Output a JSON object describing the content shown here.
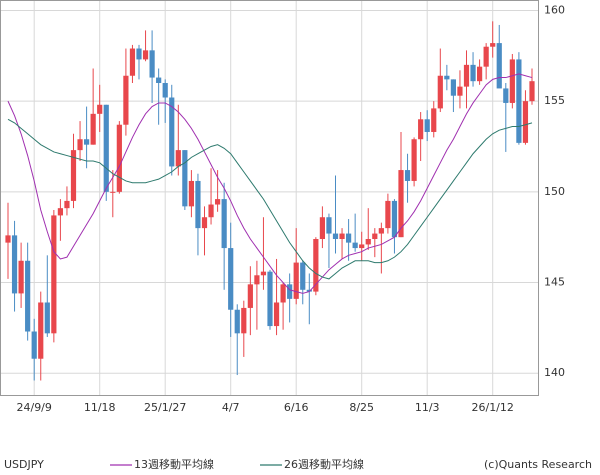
{
  "chart_data": {
    "type": "candlestick",
    "symbol": "USDJPY",
    "credit": "(c)Quants Research",
    "categories": [
      null,
      null,
      null,
      null,
      "24/9/9",
      null,
      null,
      null,
      null,
      null,
      null,
      null,
      null,
      null,
      "11/18",
      null,
      null,
      null,
      null,
      null,
      null,
      null,
      null,
      null,
      "25/1/27",
      null,
      null,
      null,
      null,
      null,
      null,
      null,
      null,
      null,
      "4/7",
      null,
      null,
      null,
      null,
      null,
      null,
      null,
      null,
      null,
      "6/16",
      null,
      null,
      null,
      null,
      null,
      null,
      null,
      null,
      null,
      "8/25",
      null,
      null,
      null,
      null,
      null,
      null,
      null,
      null,
      null,
      "11/3",
      null,
      null,
      null,
      null,
      null,
      null,
      null,
      null,
      null,
      "26/1/12",
      null,
      null,
      null,
      null,
      null,
      null
    ],
    "open": [
      147.2,
      147.6,
      144.4,
      146.2,
      142.3,
      140.8,
      143.9,
      142.2,
      148.7,
      149.1,
      149.5,
      152.3,
      152.9,
      152.6,
      154.3,
      154.8,
      150.0,
      150.0,
      153.7,
      156.4,
      157.9,
      157.3,
      157.8,
      156.3,
      156.0,
      155.2,
      151.4,
      152.3,
      149.2,
      150.6,
      148.0,
      148.6,
      149.3,
      149.6,
      146.9,
      143.5,
      142.2,
      143.6,
      144.9,
      145.4,
      145.6,
      142.6,
      143.9,
      144.9,
      144.1,
      146.1,
      144.6,
      144.5,
      147.4,
      148.6,
      147.7,
      147.4,
      147.7,
      147.2,
      146.9,
      147.1,
      147.4,
      147.7,
      148.0,
      149.5,
      147.5,
      151.2,
      150.6,
      152.9,
      154.0,
      153.3,
      154.6,
      156.4,
      156.2,
      155.3,
      155.8,
      157.0,
      156.1,
      156.9,
      158.0,
      158.2,
      155.7,
      154.9,
      157.3,
      152.7,
      155.0
    ],
    "high": [
      149.4,
      148.4,
      147.2,
      147.2,
      143.0,
      144.5,
      146.5,
      149.0,
      149.6,
      150.3,
      153.2,
      153.9,
      154.7,
      156.8,
      155.9,
      154.8,
      151.2,
      153.9,
      157.9,
      158.1,
      158.1,
      158.9,
      158.9,
      156.8,
      156.2,
      155.9,
      154.8,
      152.3,
      151.2,
      151.0,
      149.2,
      151.3,
      151.2,
      150.5,
      148.3,
      143.8,
      144.0,
      145.9,
      146.2,
      148.6,
      145.7,
      146.3,
      145.0,
      145.5,
      148.0,
      146.2,
      145.5,
      147.5,
      149.2,
      148.8,
      150.9,
      148.0,
      148.5,
      148.8,
      147.8,
      149.1,
      148.0,
      148.3,
      149.9,
      149.6,
      153.3,
      152.1,
      153.0,
      154.4,
      154.5,
      155.0,
      157.9,
      157.0,
      156.2,
      156.7,
      157.8,
      157.7,
      157.3,
      158.2,
      159.4,
      159.2,
      156.0,
      157.6,
      157.7,
      155.6,
      156.8
    ],
    "low": [
      145.2,
      143.4,
      143.6,
      141.8,
      139.6,
      139.6,
      142.0,
      141.7,
      147.3,
      148.7,
      149.1,
      151.7,
      151.3,
      152.6,
      153.3,
      149.5,
      148.6,
      149.9,
      153.1,
      156.0,
      156.2,
      157.2,
      154.9,
      153.7,
      153.8,
      150.9,
      150.9,
      149.0,
      148.6,
      146.5,
      146.5,
      148.2,
      148.9,
      144.6,
      142.0,
      139.9,
      140.9,
      142.1,
      142.4,
      144.6,
      142.4,
      142.1,
      142.4,
      142.8,
      143.8,
      143.8,
      142.7,
      144.3,
      146.9,
      145.8,
      146.6,
      146.3,
      146.2,
      146.7,
      146.2,
      146.8,
      146.4,
      145.5,
      147.7,
      146.6,
      147.5,
      149.4,
      150.3,
      151.7,
      152.8,
      153.0,
      154.4,
      155.6,
      154.4,
      154.6,
      154.6,
      155.8,
      155.9,
      156.2,
      157.4,
      155.8,
      152.2,
      154.6,
      152.6,
      152.6,
      154.8
    ],
    "close": [
      147.6,
      144.4,
      146.2,
      142.3,
      140.8,
      143.9,
      142.2,
      148.7,
      149.1,
      149.5,
      152.3,
      152.9,
      152.6,
      154.3,
      154.8,
      150.0,
      150.0,
      153.7,
      156.4,
      157.9,
      157.3,
      157.8,
      156.3,
      156.0,
      155.2,
      151.4,
      152.3,
      149.2,
      150.6,
      148.0,
      148.6,
      149.3,
      149.6,
      146.9,
      143.5,
      142.2,
      143.6,
      144.9,
      145.4,
      145.6,
      142.6,
      143.9,
      144.9,
      144.1,
      146.1,
      144.6,
      144.5,
      147.4,
      148.6,
      147.7,
      147.4,
      147.7,
      147.2,
      146.9,
      147.1,
      147.4,
      147.7,
      148.0,
      149.5,
      147.5,
      151.2,
      150.6,
      152.9,
      154.0,
      153.3,
      154.6,
      156.4,
      156.2,
      155.3,
      155.8,
      157.0,
      156.1,
      156.9,
      158.0,
      158.2,
      155.7,
      154.9,
      157.3,
      152.7,
      155.0,
      156.1
    ],
    "up_color": "#e8474c",
    "down_color": "#4a8cc4",
    "lines": [
      {
        "name": "13週移動平均線",
        "color": "#a030b0",
        "values": [
          155.0,
          154.2,
          153.2,
          152.0,
          150.6,
          149.0,
          147.8,
          146.7,
          146.3,
          146.4,
          147.0,
          147.6,
          148.2,
          148.8,
          149.5,
          150.2,
          150.8,
          151.4,
          152.2,
          153.0,
          153.7,
          154.3,
          154.7,
          154.9,
          154.9,
          154.7,
          154.4,
          154.0,
          153.5,
          152.9,
          152.2,
          151.5,
          150.8,
          150.2,
          149.5,
          148.7,
          148.0,
          147.4,
          146.9,
          146.4,
          145.9,
          145.4,
          145.0,
          144.6,
          144.5,
          144.4,
          144.5,
          144.9,
          145.3,
          145.7,
          146.0,
          146.3,
          146.5,
          146.6,
          146.7,
          146.9,
          147.0,
          147.1,
          147.3,
          147.5,
          148.0,
          148.4,
          148.9,
          149.5,
          150.2,
          150.9,
          151.6,
          152.3,
          152.9,
          153.6,
          154.3,
          154.9,
          155.4,
          155.9,
          156.2,
          156.3,
          156.3,
          156.4,
          156.5,
          156.4,
          156.3
        ]
      },
      {
        "name": "26週移動平均線",
        "color": "#2e7a6e",
        "values": [
          154.0,
          153.8,
          153.5,
          153.2,
          152.9,
          152.6,
          152.4,
          152.2,
          152.1,
          152.0,
          151.9,
          151.8,
          151.7,
          151.7,
          151.6,
          151.3,
          151.0,
          150.8,
          150.6,
          150.5,
          150.5,
          150.5,
          150.6,
          150.7,
          150.9,
          151.1,
          151.4,
          151.6,
          151.9,
          152.1,
          152.3,
          152.5,
          152.6,
          152.4,
          152.1,
          151.6,
          151.1,
          150.6,
          150.1,
          149.6,
          149.0,
          148.4,
          147.8,
          147.2,
          146.7,
          146.2,
          145.8,
          145.5,
          145.3,
          145.2,
          145.5,
          145.8,
          146.0,
          146.2,
          146.2,
          146.2,
          146.1,
          146.1,
          146.2,
          146.4,
          146.7,
          147.1,
          147.6,
          148.1,
          148.6,
          149.1,
          149.6,
          150.1,
          150.6,
          151.1,
          151.6,
          152.1,
          152.5,
          152.9,
          153.2,
          153.4,
          153.5,
          153.6,
          153.6,
          153.7,
          153.8
        ]
      }
    ],
    "ylim": [
      138.8,
      160.3
    ],
    "yticks": [
      140,
      145,
      150,
      155,
      160
    ],
    "grid": true
  }
}
